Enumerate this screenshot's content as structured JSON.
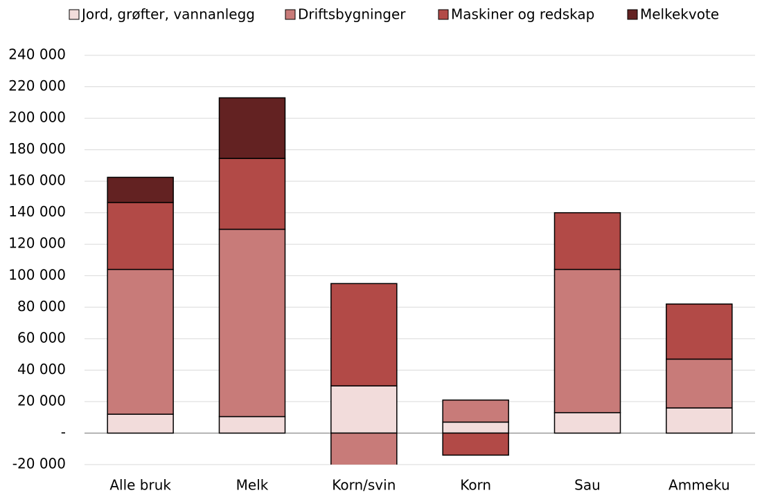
{
  "chart_data": {
    "type": "stacked_bar",
    "categories": [
      "Alle bruk",
      "Melk",
      "Korn/svin",
      "Korn",
      "Sau",
      "Ammeku"
    ],
    "series": [
      {
        "name": "Jord, grøfter, vannanlegg",
        "color": "#f2dcdb",
        "values": [
          12000,
          10500,
          30000,
          7000,
          13000,
          16000
        ]
      },
      {
        "name": "Driftsbygninger",
        "color": "#c87b79",
        "values": [
          92000,
          119000,
          -21000,
          14000,
          91000,
          31000
        ]
      },
      {
        "name": "Maskiner og redskap",
        "color": "#b24a47",
        "values": [
          42500,
          45000,
          65000,
          -14000,
          36000,
          35000
        ]
      },
      {
        "name": "Melkekvote",
        "color": "#632222",
        "values": [
          16000,
          38500,
          null,
          null,
          null,
          null
        ]
      }
    ],
    "ylim": [
      -20000,
      240000
    ],
    "yticks": [
      {
        "value": -20000,
        "label": "-20 000"
      },
      {
        "value": 0,
        "label": "-"
      },
      {
        "value": 20000,
        "label": "20 000"
      },
      {
        "value": 40000,
        "label": "40 000"
      },
      {
        "value": 60000,
        "label": "60 000"
      },
      {
        "value": 80000,
        "label": "80 000"
      },
      {
        "value": 100000,
        "label": "100 000"
      },
      {
        "value": 120000,
        "label": "120 000"
      },
      {
        "value": 140000,
        "label": "140 000"
      },
      {
        "value": 160000,
        "label": "160 000"
      },
      {
        "value": 180000,
        "label": "180 000"
      },
      {
        "value": 200000,
        "label": "200 000"
      },
      {
        "value": 220000,
        "label": "220 000"
      },
      {
        "value": 240000,
        "label": "240 000"
      }
    ],
    "grid": true,
    "legend": "top"
  }
}
